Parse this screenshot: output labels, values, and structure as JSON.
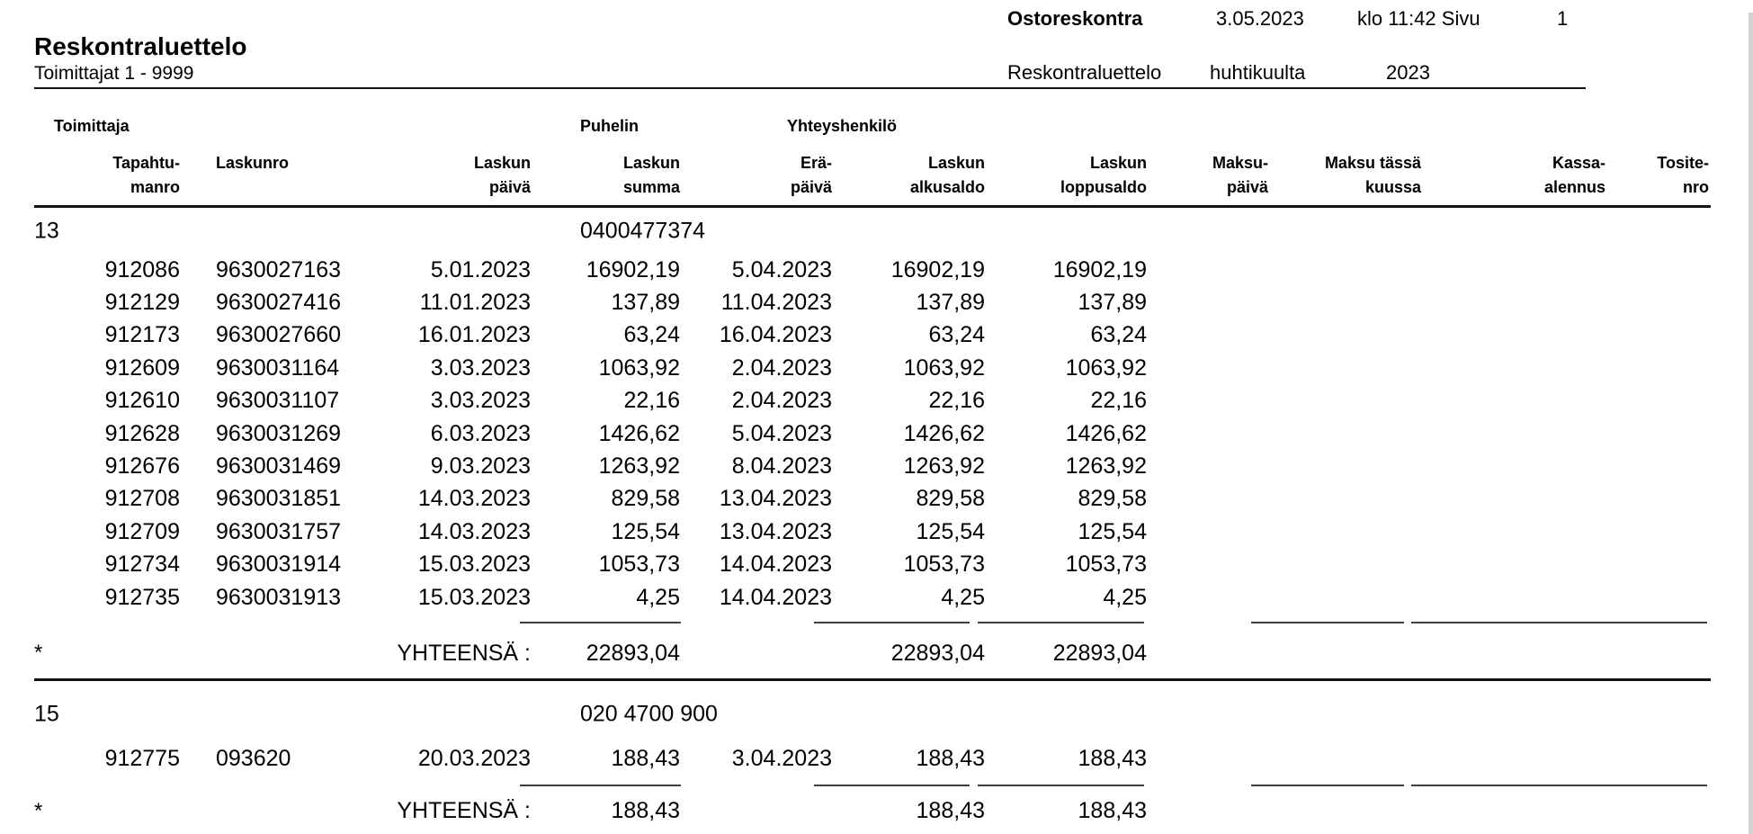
{
  "header": {
    "app_title": "Ostoreskontra",
    "print_date": "3.05.2023",
    "time_page_label": "klo 11:42 Sivu",
    "page_number": "1",
    "report_name": "Reskontraluettelo",
    "period_month": "huhtikuulta",
    "period_year": "2023",
    "title": "Reskontraluettelo",
    "subtitle": "Toimittajat 1 - 9999"
  },
  "table": {
    "group_headers": {
      "toimittaja": "Toimittaja",
      "puhelin": "Puhelin",
      "yhteyshenkilo": "Yhteyshenkilö"
    },
    "columns": [
      {
        "line1": "Tapahtu-",
        "line2": "manro"
      },
      {
        "line1": "Laskunro",
        "line2": ""
      },
      {
        "line1": "Laskun",
        "line2": "päivä"
      },
      {
        "line1": "Laskun",
        "line2": "summa"
      },
      {
        "line1": "Erä-",
        "line2": "päivä"
      },
      {
        "line1": "Laskun",
        "line2": "alkusaldo"
      },
      {
        "line1": "Laskun",
        "line2": "loppusaldo"
      },
      {
        "line1": "Maksu-",
        "line2": "päivä"
      },
      {
        "line1": "Maksu tässä",
        "line2": "kuussa"
      },
      {
        "line1": "Kassa-",
        "line2": "alennus"
      },
      {
        "line1": "Tosite-",
        "line2": "nro"
      }
    ],
    "sections": [
      {
        "supplier_number": "13",
        "phone": "0400477374",
        "rows": [
          [
            "912086",
            "9630027163",
            "5.01.2023",
            "16902,19",
            "5.04.2023",
            "16902,19",
            "16902,19"
          ],
          [
            "912129",
            "9630027416",
            "11.01.2023",
            "137,89",
            "11.04.2023",
            "137,89",
            "137,89"
          ],
          [
            "912173",
            "9630027660",
            "16.01.2023",
            "63,24",
            "16.04.2023",
            "63,24",
            "63,24"
          ],
          [
            "912609",
            "9630031164",
            "3.03.2023",
            "1063,92",
            "2.04.2023",
            "1063,92",
            "1063,92"
          ],
          [
            "912610",
            "9630031107",
            "3.03.2023",
            "22,16",
            "2.04.2023",
            "22,16",
            "22,16"
          ],
          [
            "912628",
            "9630031269",
            "6.03.2023",
            "1426,62",
            "5.04.2023",
            "1426,62",
            "1426,62"
          ],
          [
            "912676",
            "9630031469",
            "9.03.2023",
            "1263,92",
            "8.04.2023",
            "1263,92",
            "1263,92"
          ],
          [
            "912708",
            "9630031851",
            "14.03.2023",
            "829,58",
            "13.04.2023",
            "829,58",
            "829,58"
          ],
          [
            "912709",
            "9630031757",
            "14.03.2023",
            "125,54",
            "13.04.2023",
            "125,54",
            "125,54"
          ],
          [
            "912734",
            "9630031914",
            "15.03.2023",
            "1053,73",
            "14.04.2023",
            "1053,73",
            "1053,73"
          ],
          [
            "912735",
            "9630031913",
            "15.03.2023",
            "4,25",
            "14.04.2023",
            "4,25",
            "4,25"
          ]
        ],
        "total": {
          "marker": "*",
          "label": "YHTEENSÄ :",
          "laskun_summa": "22893,04",
          "laskun_alkusaldo": "22893,04",
          "laskun_loppusaldo": "22893,04"
        }
      },
      {
        "supplier_number": "15",
        "phone": "020 4700 900",
        "rows": [
          [
            "912775",
            "093620",
            "20.03.2023",
            "188,43",
            "3.04.2023",
            "188,43",
            "188,43"
          ]
        ],
        "total": {
          "marker": "*",
          "label": "YHTEENSÄ :",
          "laskun_summa": "188,43",
          "laskun_alkusaldo": "188,43",
          "laskun_loppusaldo": "188,43"
        }
      }
    ]
  },
  "scrollbar_color": "#d2d2d2"
}
